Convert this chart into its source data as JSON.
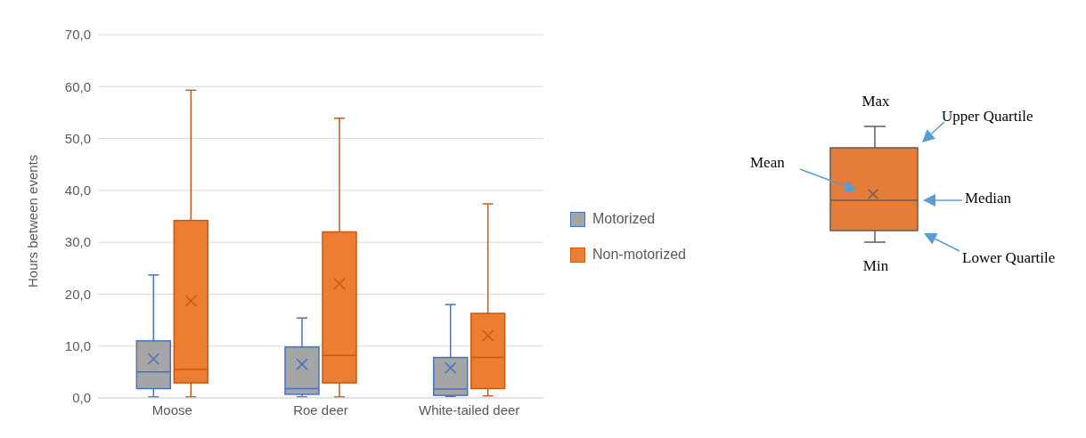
{
  "chart_data": {
    "type": "box",
    "categories": [
      "Moose",
      "Roe deer",
      "White-tailed deer"
    ],
    "ylabel": "Hours between events",
    "ylim": [
      0,
      70
    ],
    "yticks": [
      {
        "value": 0,
        "label": "0,0"
      },
      {
        "value": 10,
        "label": "10,0"
      },
      {
        "value": 20,
        "label": "20,0"
      },
      {
        "value": 30,
        "label": "30,0"
      },
      {
        "value": 40,
        "label": "40,0"
      },
      {
        "value": 50,
        "label": "50,0"
      },
      {
        "value": 60,
        "label": "60,0"
      },
      {
        "value": 70,
        "label": "70,0"
      }
    ],
    "grid": "y",
    "legend": "right",
    "series": [
      {
        "name": "Motorized",
        "color": "#a5a5a5",
        "boxes": [
          {
            "low": 0.2,
            "q1": 1.8,
            "median": 5.0,
            "q3": 11.0,
            "high": 23.7,
            "mean": 7.5
          },
          {
            "low": 0.2,
            "q1": 0.7,
            "median": 1.8,
            "q3": 9.8,
            "high": 15.4,
            "mean": 6.5
          },
          {
            "low": 0.3,
            "q1": 0.5,
            "median": 1.7,
            "q3": 7.8,
            "high": 18.0,
            "mean": 5.8
          }
        ]
      },
      {
        "name": "Non-motorized",
        "color": "#ed7d31",
        "boxes": [
          {
            "low": 0.2,
            "q1": 2.9,
            "median": 5.5,
            "q3": 34.2,
            "high": 59.3,
            "mean": 18.7
          },
          {
            "low": 0.2,
            "q1": 2.9,
            "median": 8.2,
            "q3": 32.0,
            "high": 53.9,
            "mean": 22.0
          },
          {
            "low": 0.4,
            "q1": 1.8,
            "median": 7.8,
            "q3": 16.3,
            "high": 37.4,
            "mean": 12.0
          }
        ]
      }
    ],
    "annotations": [
      "Max",
      "Upper Quartile",
      "Mean",
      "Median",
      "Lower Quartile",
      "Min"
    ]
  }
}
